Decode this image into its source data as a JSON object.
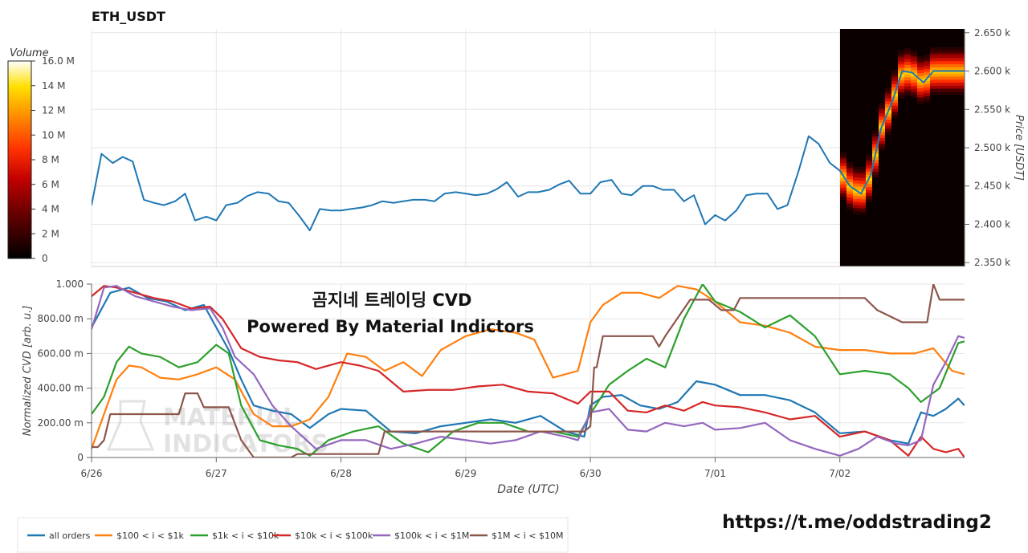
{
  "title": "ETH_USDT",
  "overlay": {
    "line1": "곰지네 트레이딩 CVD",
    "line2": "Powered By Material Indictors",
    "watermark1": "MATERIAL",
    "watermark2": "INDICATORS",
    "url": "https://t.me/oddstrading2"
  },
  "colors": {
    "price": "#1f77b4",
    "all": "#1f77b4",
    "s100": "#ff7f0e",
    "s1k": "#2ca02c",
    "s10k": "#d62728",
    "s100k": "#9467bd",
    "s1m": "#8c564b"
  },
  "chart_data": [
    {
      "type": "heatmap",
      "role": "colorbar",
      "title": "Volume",
      "range": [
        0,
        16
      ],
      "tick_labels": [
        "0",
        "2 M",
        "4 M",
        "6 M",
        "8 M",
        "10 M",
        "12 M",
        "14 M",
        "16.0 M"
      ],
      "tick_values": [
        0,
        2,
        4,
        6,
        8,
        10,
        12,
        14,
        16
      ]
    },
    {
      "type": "line",
      "title": "ETH_USDT",
      "ylabel": "Price [USDT]",
      "ylim": [
        2345,
        2655
      ],
      "y_ticks": [
        2350,
        2400,
        2450,
        2500,
        2550,
        2600,
        2650
      ],
      "y_tick_labels": [
        "2.350 k",
        "2.400 k",
        "2.450 k",
        "2.500 k",
        "2.550 k",
        "2.600 k",
        "2.650 k"
      ],
      "xlim": [
        0,
        7.0
      ],
      "series": [
        {
          "x": [
            0,
            0.08,
            0.17,
            0.25,
            0.33,
            0.42,
            0.5,
            0.58,
            0.67,
            0.75,
            0.83,
            0.92,
            1.0,
            1.08,
            1.17,
            1.25,
            1.33,
            1.42,
            1.5,
            1.58,
            1.67,
            1.75,
            1.83,
            1.92,
            2.0,
            2.08,
            2.17,
            2.25,
            2.33,
            2.42,
            2.5,
            2.58,
            2.67,
            2.75,
            2.83,
            2.92,
            3.0,
            3.08,
            3.17,
            3.25,
            3.33,
            3.42,
            3.5,
            3.58,
            3.67,
            3.75,
            3.83,
            3.92,
            4.0,
            4.08,
            4.17,
            4.25,
            4.33,
            4.42,
            4.5,
            4.58,
            4.67,
            4.75,
            4.83,
            4.92,
            5.0,
            5.08,
            5.17,
            5.25,
            5.33,
            5.42,
            5.5,
            5.58,
            5.67,
            5.75,
            5.83,
            5.92,
            6.0,
            6.08,
            6.17,
            6.25,
            6.33,
            6.42,
            6.5,
            6.58,
            6.67,
            6.75,
            6.83,
            6.92,
            7.0
          ],
          "y": [
            2425,
            2492,
            2480,
            2488,
            2482,
            2432,
            2428,
            2425,
            2430,
            2440,
            2405,
            2410,
            2405,
            2425,
            2428,
            2437,
            2442,
            2440,
            2430,
            2428,
            2410,
            2392,
            2420,
            2418,
            2418,
            2420,
            2422,
            2425,
            2430,
            2428,
            2430,
            2432,
            2432,
            2430,
            2440,
            2442,
            2440,
            2438,
            2440,
            2446,
            2455,
            2436,
            2442,
            2442,
            2445,
            2452,
            2457,
            2440,
            2440,
            2455,
            2458,
            2440,
            2438,
            2450,
            2450,
            2445,
            2445,
            2430,
            2438,
            2400,
            2412,
            2405,
            2418,
            2438,
            2440,
            2440,
            2420,
            2425,
            2470,
            2515,
            2505,
            2480,
            2470,
            2450,
            2440,
            2465,
            2525,
            2560,
            2600,
            2598,
            2585,
            2600,
            2600,
            2600,
            2600
          ],
          "name": ""
        }
      ]
    },
    {
      "type": "line",
      "xlabel": "Date (UTC)",
      "ylabel": "Normalized CVD [arb. u.]",
      "ylim": [
        0,
        1.0
      ],
      "y_ticks": [
        0,
        0.2,
        0.4,
        0.6,
        0.8,
        1.0
      ],
      "y_tick_labels": [
        "0",
        "200.00 m",
        "400.00 m",
        "600.00 m",
        "800.00 m",
        "1.000"
      ],
      "xlim": [
        0,
        7.0
      ],
      "x_ticks": [
        0,
        1,
        2,
        3,
        4,
        5,
        6
      ],
      "categories": [
        "6/26",
        "6/27",
        "6/28",
        "6/29",
        "6/30",
        "7/01",
        "7/02"
      ],
      "series": [
        {
          "key": "all",
          "name": "all orders",
          "x": [
            0,
            0.15,
            0.3,
            0.45,
            0.6,
            0.75,
            0.9,
            1.0,
            1.1,
            1.2,
            1.3,
            1.45,
            1.6,
            1.75,
            1.9,
            2.0,
            2.2,
            2.4,
            2.6,
            2.8,
            3.0,
            3.2,
            3.4,
            3.6,
            3.8,
            3.95,
            4.0,
            4.1,
            4.25,
            4.4,
            4.55,
            4.7,
            4.85,
            5.0,
            5.2,
            5.4,
            5.6,
            5.8,
            6.0,
            6.2,
            6.4,
            6.55,
            6.65,
            6.75,
            6.85,
            6.95,
            7.0
          ],
          "y": [
            0.75,
            0.95,
            0.98,
            0.92,
            0.9,
            0.85,
            0.88,
            0.75,
            0.62,
            0.45,
            0.3,
            0.27,
            0.25,
            0.17,
            0.25,
            0.28,
            0.27,
            0.15,
            0.14,
            0.18,
            0.2,
            0.22,
            0.2,
            0.24,
            0.15,
            0.12,
            0.3,
            0.35,
            0.36,
            0.3,
            0.28,
            0.32,
            0.44,
            0.42,
            0.36,
            0.36,
            0.33,
            0.26,
            0.14,
            0.15,
            0.1,
            0.08,
            0.26,
            0.24,
            0.28,
            0.34,
            0.3
          ]
        },
        {
          "key": "s100",
          "name": "$100 < i < $1k",
          "x": [
            0,
            0.1,
            0.2,
            0.3,
            0.4,
            0.55,
            0.7,
            0.85,
            1.0,
            1.15,
            1.3,
            1.45,
            1.6,
            1.75,
            1.9,
            2.05,
            2.2,
            2.35,
            2.5,
            2.65,
            2.8,
            3.0,
            3.2,
            3.4,
            3.55,
            3.7,
            3.9,
            4.0,
            4.1,
            4.25,
            4.4,
            4.55,
            4.7,
            4.85,
            5.0,
            5.2,
            5.4,
            5.6,
            5.8,
            6.0,
            6.2,
            6.4,
            6.6,
            6.75,
            6.9,
            7.0
          ],
          "y": [
            0.05,
            0.25,
            0.45,
            0.53,
            0.52,
            0.46,
            0.45,
            0.48,
            0.52,
            0.45,
            0.25,
            0.18,
            0.18,
            0.22,
            0.35,
            0.6,
            0.58,
            0.5,
            0.55,
            0.47,
            0.62,
            0.7,
            0.74,
            0.72,
            0.68,
            0.46,
            0.5,
            0.78,
            0.88,
            0.95,
            0.95,
            0.92,
            0.99,
            0.97,
            0.9,
            0.78,
            0.76,
            0.72,
            0.64,
            0.62,
            0.62,
            0.6,
            0.6,
            0.63,
            0.5,
            0.48
          ]
        },
        {
          "key": "s1k",
          "name": "$1k < i < $10k",
          "x": [
            0,
            0.1,
            0.2,
            0.3,
            0.4,
            0.55,
            0.7,
            0.85,
            1.0,
            1.1,
            1.2,
            1.35,
            1.5,
            1.65,
            1.75,
            1.9,
            2.1,
            2.3,
            2.5,
            2.7,
            2.9,
            3.1,
            3.3,
            3.5,
            3.7,
            3.9,
            4.0,
            4.15,
            4.3,
            4.45,
            4.6,
            4.75,
            4.9,
            5.0,
            5.2,
            5.4,
            5.6,
            5.8,
            6.0,
            6.2,
            6.4,
            6.55,
            6.65,
            6.8,
            6.95,
            7.0
          ],
          "y": [
            0.25,
            0.35,
            0.55,
            0.64,
            0.6,
            0.58,
            0.52,
            0.55,
            0.65,
            0.6,
            0.3,
            0.1,
            0.07,
            0.05,
            0.01,
            0.1,
            0.15,
            0.18,
            0.08,
            0.03,
            0.15,
            0.2,
            0.2,
            0.15,
            0.15,
            0.12,
            0.25,
            0.42,
            0.5,
            0.57,
            0.52,
            0.8,
            1.0,
            0.9,
            0.84,
            0.75,
            0.82,
            0.7,
            0.48,
            0.5,
            0.48,
            0.4,
            0.32,
            0.4,
            0.66,
            0.67
          ]
        },
        {
          "key": "s10k",
          "name": "$10k < i < $100k",
          "x": [
            0,
            0.1,
            0.2,
            0.35,
            0.5,
            0.65,
            0.8,
            0.95,
            1.05,
            1.2,
            1.35,
            1.5,
            1.65,
            1.8,
            2.0,
            2.15,
            2.3,
            2.5,
            2.7,
            2.9,
            3.1,
            3.3,
            3.5,
            3.7,
            3.9,
            4.0,
            4.15,
            4.3,
            4.45,
            4.6,
            4.75,
            4.9,
            5.0,
            5.2,
            5.4,
            5.6,
            5.8,
            6.0,
            6.2,
            6.4,
            6.55,
            6.65,
            6.75,
            6.85,
            6.95,
            7.0
          ],
          "y": [
            0.93,
            0.99,
            0.98,
            0.95,
            0.92,
            0.9,
            0.86,
            0.87,
            0.8,
            0.63,
            0.58,
            0.56,
            0.55,
            0.51,
            0.55,
            0.53,
            0.5,
            0.38,
            0.39,
            0.39,
            0.41,
            0.42,
            0.38,
            0.37,
            0.31,
            0.38,
            0.38,
            0.27,
            0.26,
            0.3,
            0.27,
            0.32,
            0.3,
            0.29,
            0.26,
            0.22,
            0.24,
            0.12,
            0.15,
            0.1,
            0.01,
            0.12,
            0.05,
            0.03,
            0.05,
            0.0
          ]
        },
        {
          "key": "s100k",
          "name": "$100k < i < $1M",
          "x": [
            0,
            0.1,
            0.2,
            0.35,
            0.5,
            0.65,
            0.8,
            0.95,
            1.05,
            1.15,
            1.3,
            1.45,
            1.6,
            1.8,
            2.0,
            2.2,
            2.4,
            2.6,
            2.8,
            3.0,
            3.2,
            3.4,
            3.6,
            3.8,
            3.9,
            4.0,
            4.15,
            4.3,
            4.45,
            4.6,
            4.75,
            4.9,
            5.0,
            5.2,
            5.4,
            5.6,
            5.8,
            6.0,
            6.15,
            6.3,
            6.45,
            6.55,
            6.65,
            6.75,
            6.85,
            6.95,
            7.0
          ],
          "y": [
            0.74,
            0.98,
            0.99,
            0.93,
            0.9,
            0.87,
            0.85,
            0.86,
            0.75,
            0.58,
            0.48,
            0.3,
            0.18,
            0.05,
            0.1,
            0.1,
            0.05,
            0.08,
            0.12,
            0.1,
            0.08,
            0.1,
            0.15,
            0.12,
            0.1,
            0.26,
            0.28,
            0.16,
            0.15,
            0.2,
            0.18,
            0.2,
            0.16,
            0.17,
            0.2,
            0.1,
            0.05,
            0.01,
            0.05,
            0.12,
            0.08,
            0.07,
            0.1,
            0.42,
            0.55,
            0.7,
            0.69
          ]
        },
        {
          "key": "s1m",
          "name": "$1M < i < $10M",
          "x": [
            0,
            0.05,
            0.1,
            0.15,
            0.3,
            0.5,
            0.7,
            0.75,
            0.85,
            0.9,
            1.0,
            1.1,
            1.2,
            1.3,
            1.35,
            1.6,
            1.65,
            2.0,
            2.3,
            2.35,
            3.0,
            3.5,
            3.9,
            3.95,
            4.0,
            4.03,
            4.05,
            4.1,
            4.25,
            4.5,
            4.55,
            4.6,
            4.8,
            4.95,
            5.05,
            5.15,
            5.2,
            5.8,
            6.0,
            6.2,
            6.3,
            6.5,
            6.7,
            6.75,
            6.8,
            7.0
          ],
          "y": [
            0.06,
            0.06,
            0.1,
            0.25,
            0.25,
            0.25,
            0.25,
            0.37,
            0.37,
            0.29,
            0.29,
            0.29,
            0.1,
            0.0,
            0.0,
            0.0,
            0.02,
            0.02,
            0.02,
            0.15,
            0.15,
            0.15,
            0.15,
            0.15,
            0.18,
            0.52,
            0.52,
            0.7,
            0.7,
            0.7,
            0.64,
            0.7,
            0.91,
            0.91,
            0.85,
            0.85,
            0.92,
            0.92,
            0.92,
            0.92,
            0.85,
            0.78,
            0.78,
            1.0,
            0.91,
            0.91
          ]
        }
      ]
    }
  ]
}
